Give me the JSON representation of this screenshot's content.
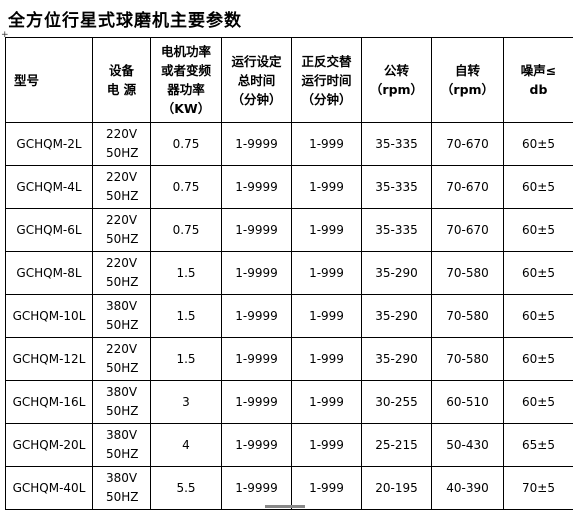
{
  "title": "全方位行星式球磨机主要参数",
  "anchor_glyph": "+",
  "header": {
    "model_a": "型",
    "model_b": "号",
    "power": "设备\n电 源",
    "motor": "电机功率\n或者变频\n器功率\n（KW）",
    "runtime": "运行设定\n总时间\n（分钟）",
    "alt": "正反交替\n运行时间\n（分钟）",
    "rev": "公转\n（rpm）",
    "rot": "自转\n（rpm）",
    "noise": "噪声≤\ndb"
  },
  "rows": [
    {
      "model": "GCHQM-2L",
      "v": "220V",
      "hz": "50HZ",
      "kw": "0.75",
      "total": "1-9999",
      "alt": "1-999",
      "rev": "35-335",
      "rot": "70-670",
      "noise": "60±5"
    },
    {
      "model": "GCHQM-4L",
      "v": "220V",
      "hz": "50HZ",
      "kw": "0.75",
      "total": "1-9999",
      "alt": "1-999",
      "rev": "35-335",
      "rot": "70-670",
      "noise": "60±5"
    },
    {
      "model": "GCHQM-6L",
      "v": "220V",
      "hz": "50HZ",
      "kw": "0.75",
      "total": "1-9999",
      "alt": "1-999",
      "rev": "35-335",
      "rot": "70-670",
      "noise": "60±5"
    },
    {
      "model": "GCHQM-8L",
      "v": "220V",
      "hz": "50HZ",
      "kw": "1.5",
      "total": "1-9999",
      "alt": "1-999",
      "rev": "35-290",
      "rot": "70-580",
      "noise": "60±5"
    },
    {
      "model": "GCHQM-10L",
      "v": "380V",
      "hz": "50HZ",
      "kw": "1.5",
      "total": "1-9999",
      "alt": "1-999",
      "rev": "35-290",
      "rot": "70-580",
      "noise": "60±5"
    },
    {
      "model": "GCHQM-12L",
      "v": "220V",
      "hz": "50HZ",
      "kw": "1.5",
      "total": "1-9999",
      "alt": "1-999",
      "rev": "35-290",
      "rot": "70-580",
      "noise": "60±5"
    },
    {
      "model": "GCHQM-16L",
      "v": "380V",
      "hz": "50HZ",
      "kw": "3",
      "total": "1-9999",
      "alt": "1-999",
      "rev": "30-255",
      "rot": "60-510",
      "noise": "60±5"
    },
    {
      "model": "GCHQM-20L",
      "v": "380V",
      "hz": "50HZ",
      "kw": "4",
      "total": "1-9999",
      "alt": "1-999",
      "rev": "25-215",
      "rot": "50-430",
      "noise": "65±5"
    },
    {
      "model": "GCHQM-40L",
      "v": "380V",
      "hz": "50HZ",
      "kw": "5.5",
      "total": "1-9999",
      "alt": "1-999",
      "rev": "20-195",
      "rot": "40-390",
      "noise": "70±5"
    }
  ]
}
